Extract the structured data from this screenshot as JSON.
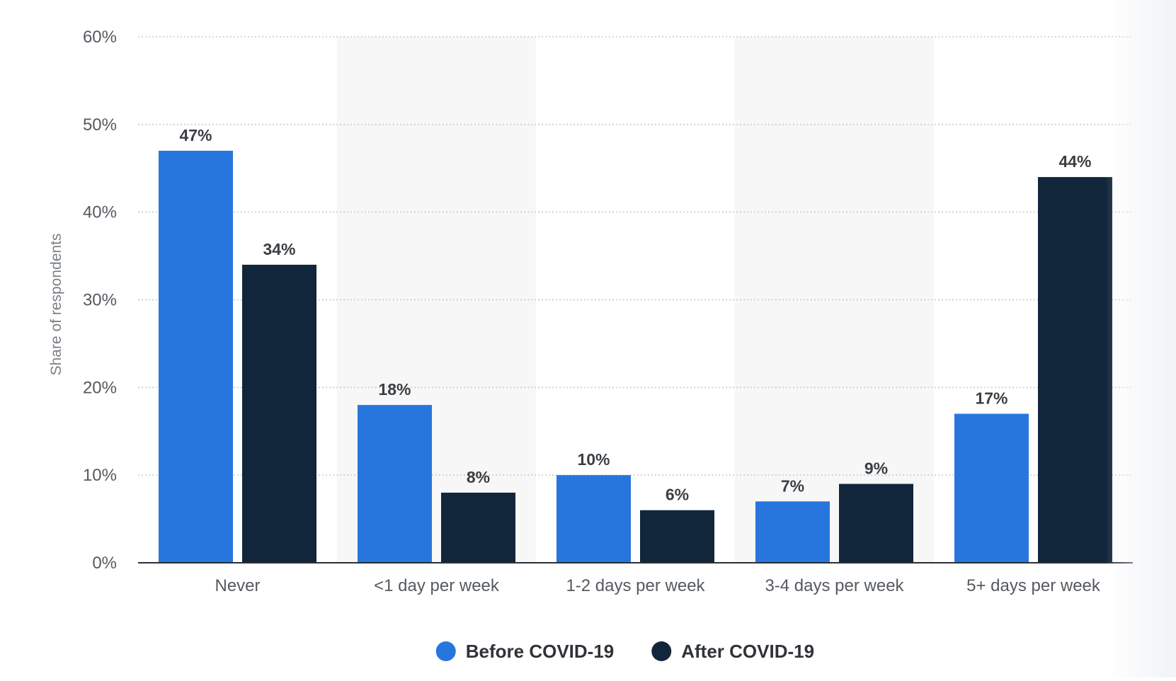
{
  "chart_data": {
    "type": "bar",
    "title": "",
    "xlabel": "",
    "ylabel": "Share of respondents",
    "ylim": [
      0,
      60
    ],
    "yticks": [
      0,
      10,
      20,
      30,
      40,
      50,
      60
    ],
    "ytick_labels": [
      "0%",
      "10%",
      "20%",
      "30%",
      "40%",
      "50%",
      "60%"
    ],
    "grid": true,
    "legend_position": "bottom",
    "categories": [
      "Never",
      "<1 day per week",
      "1-2 days per week",
      "3-4 days per week",
      "5+ days per week"
    ],
    "series": [
      {
        "name": "Before COVID-19",
        "color": "#2776dd",
        "values": [
          47,
          18,
          10,
          7,
          17
        ],
        "labels": [
          "47%",
          "18%",
          "10%",
          "7%",
          "17%"
        ]
      },
      {
        "name": "After COVID-19",
        "color": "#12263b",
        "values": [
          34,
          8,
          6,
          9,
          44
        ],
        "labels": [
          "34%",
          "8%",
          "6%",
          "9%",
          "44%"
        ]
      }
    ],
    "band_color": "#f7f7f7",
    "grid_color": "#c8c8c8",
    "axis_color": "#2b2f33"
  }
}
